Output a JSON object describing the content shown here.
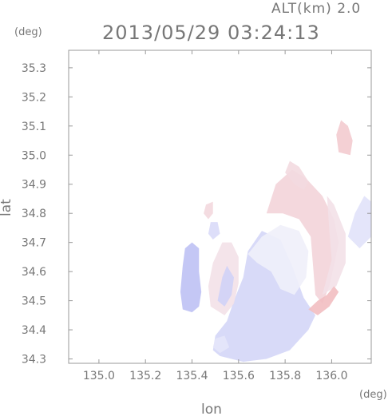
{
  "chart_data": {
    "type": "heatmap",
    "title": "2013/05/29 03:24:13",
    "subtitle": "ALT(km) 2.0",
    "xlabel": "lon",
    "ylabel": "lat",
    "xunit": "(deg)",
    "yunit": "(deg)",
    "xlim": [
      134.87,
      136.17
    ],
    "ylim": [
      34.285,
      35.36
    ],
    "xticks": [
      "135.0",
      "135.2",
      "135.4",
      "135.6",
      "135.8",
      "136.0"
    ],
    "xtick_values": [
      135.0,
      135.2,
      135.4,
      135.6,
      135.8,
      136.0
    ],
    "yticks": [
      "34.3",
      "34.4",
      "34.5",
      "34.6",
      "34.7",
      "34.8",
      "34.9",
      "35.0",
      "35.1",
      "35.2",
      "35.3"
    ],
    "ytick_values": [
      34.3,
      34.4,
      34.5,
      34.6,
      34.7,
      34.8,
      34.9,
      35.0,
      35.1,
      35.2,
      35.3
    ],
    "grid": false,
    "colors": {
      "negative": "#9b9ff0",
      "positive": "#f29a9a",
      "neutral": "#f3f3fb",
      "axis": "#999999",
      "text": "#777777"
    },
    "regions": [
      {
        "name": "west-blue-patch",
        "value": -0.6,
        "points": [
          [
            135.36,
            34.47
          ],
          [
            135.35,
            34.53
          ],
          [
            135.36,
            34.62
          ],
          [
            135.37,
            34.68
          ],
          [
            135.4,
            34.7
          ],
          [
            135.43,
            34.68
          ],
          [
            135.43,
            34.6
          ],
          [
            135.44,
            34.53
          ],
          [
            135.43,
            34.48
          ],
          [
            135.4,
            34.46
          ]
        ]
      },
      {
        "name": "main-blue-body",
        "value": -0.35,
        "points": [
          [
            135.52,
            34.31
          ],
          [
            135.49,
            34.33
          ],
          [
            135.5,
            34.38
          ],
          [
            135.55,
            34.43
          ],
          [
            135.58,
            34.5
          ],
          [
            135.62,
            34.58
          ],
          [
            135.64,
            34.67
          ],
          [
            135.7,
            34.74
          ],
          [
            135.78,
            34.71
          ],
          [
            135.83,
            34.62
          ],
          [
            135.88,
            34.51
          ],
          [
            135.93,
            34.45
          ],
          [
            135.9,
            34.4
          ],
          [
            135.82,
            34.33
          ],
          [
            135.72,
            34.3
          ],
          [
            135.62,
            34.29
          ]
        ]
      },
      {
        "name": "neutral-center",
        "value": -0.05,
        "points": [
          [
            135.64,
            34.66
          ],
          [
            135.7,
            34.72
          ],
          [
            135.78,
            34.76
          ],
          [
            135.86,
            34.74
          ],
          [
            135.9,
            34.67
          ],
          [
            135.89,
            34.58
          ],
          [
            135.84,
            34.52
          ],
          [
            135.78,
            34.54
          ],
          [
            135.74,
            34.6
          ],
          [
            135.68,
            34.63
          ]
        ]
      },
      {
        "name": "northeast-red-band",
        "value": 0.35,
        "points": [
          [
            135.72,
            34.8
          ],
          [
            135.76,
            34.9
          ],
          [
            135.83,
            34.95
          ],
          [
            135.89,
            34.92
          ],
          [
            135.96,
            34.86
          ],
          [
            136.01,
            34.78
          ],
          [
            136.03,
            34.7
          ],
          [
            136.01,
            34.62
          ],
          [
            135.99,
            34.55
          ],
          [
            135.96,
            34.49
          ],
          [
            135.93,
            34.52
          ],
          [
            135.92,
            34.62
          ],
          [
            135.91,
            34.72
          ],
          [
            135.86,
            34.78
          ],
          [
            135.79,
            34.8
          ]
        ]
      },
      {
        "name": "east-pink-arc",
        "value": 0.2,
        "points": [
          [
            135.96,
            34.52
          ],
          [
            136.02,
            34.55
          ],
          [
            136.06,
            34.63
          ],
          [
            136.06,
            34.73
          ],
          [
            136.01,
            34.83
          ],
          [
            135.98,
            34.86
          ],
          [
            135.99,
            34.74
          ],
          [
            136.0,
            34.64
          ]
        ]
      },
      {
        "name": "north-red-strip",
        "value": 0.28,
        "points": [
          [
            135.8,
            34.94
          ],
          [
            135.82,
            34.98
          ],
          [
            135.86,
            34.96
          ],
          [
            135.9,
            34.91
          ],
          [
            135.88,
            34.88
          ],
          [
            135.84,
            34.9
          ]
        ]
      },
      {
        "name": "northeast-red-isolate",
        "value": 0.45,
        "points": [
          [
            136.03,
            35.01
          ],
          [
            136.02,
            35.07
          ],
          [
            136.04,
            35.12
          ],
          [
            136.07,
            35.1
          ],
          [
            136.09,
            35.05
          ],
          [
            136.08,
            35.0
          ]
        ]
      },
      {
        "name": "eastern-light-blue-fragment",
        "value": -0.2,
        "points": [
          [
            136.07,
            34.72
          ],
          [
            136.1,
            34.8
          ],
          [
            136.14,
            34.86
          ],
          [
            136.17,
            34.84
          ],
          [
            136.17,
            34.72
          ],
          [
            136.12,
            34.68
          ]
        ]
      },
      {
        "name": "southeast-red-core",
        "value": 0.6,
        "points": [
          [
            135.9,
            34.47
          ],
          [
            135.94,
            34.5
          ],
          [
            135.98,
            34.52
          ],
          [
            136.01,
            34.55
          ],
          [
            136.03,
            34.53
          ],
          [
            135.99,
            34.48
          ],
          [
            135.94,
            34.45
          ]
        ]
      },
      {
        "name": "northwest-mixed-speckle-1",
        "value": 0.3,
        "points": [
          [
            135.45,
            34.8
          ],
          [
            135.46,
            34.83
          ],
          [
            135.49,
            34.84
          ],
          [
            135.49,
            34.8
          ],
          [
            135.47,
            34.78
          ]
        ]
      },
      {
        "name": "northwest-mixed-speckle-2",
        "value": -0.3,
        "points": [
          [
            135.47,
            34.73
          ],
          [
            135.48,
            34.77
          ],
          [
            135.51,
            34.77
          ],
          [
            135.52,
            34.73
          ],
          [
            135.49,
            34.71
          ]
        ]
      },
      {
        "name": "west-mixed-cluster",
        "value": 0.2,
        "points": [
          [
            135.48,
            34.48
          ],
          [
            135.47,
            34.55
          ],
          [
            135.49,
            34.63
          ],
          [
            135.53,
            34.7
          ],
          [
            135.57,
            34.7
          ],
          [
            135.6,
            34.65
          ],
          [
            135.6,
            34.56
          ],
          [
            135.58,
            34.49
          ],
          [
            135.54,
            34.45
          ]
        ]
      },
      {
        "name": "west-blue-cluster",
        "value": -0.4,
        "points": [
          [
            135.51,
            34.5
          ],
          [
            135.53,
            34.58
          ],
          [
            135.55,
            34.62
          ],
          [
            135.58,
            34.58
          ],
          [
            135.57,
            34.52
          ],
          [
            135.54,
            34.48
          ]
        ]
      },
      {
        "name": "southwest-lower-fragment",
        "value": -0.15,
        "points": [
          [
            135.49,
            34.34
          ],
          [
            135.5,
            34.37
          ],
          [
            135.54,
            34.38
          ],
          [
            135.56,
            34.34
          ],
          [
            135.52,
            34.32
          ]
        ]
      }
    ]
  }
}
